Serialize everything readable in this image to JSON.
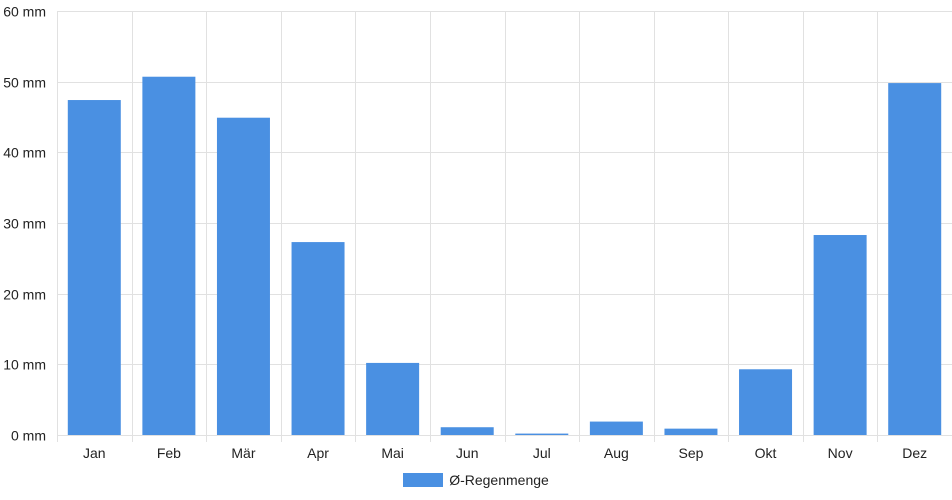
{
  "chart_data": {
    "type": "bar",
    "categories": [
      "Jan",
      "Feb",
      "Mär",
      "Apr",
      "Mai",
      "Jun",
      "Jul",
      "Aug",
      "Sep",
      "Okt",
      "Nov",
      "Dez"
    ],
    "series": [
      {
        "name": "Ø-Regenmenge",
        "values": [
          47.4,
          50.7,
          44.9,
          27.3,
          10.2,
          1.1,
          0.2,
          1.9,
          0.9,
          9.3,
          28.3,
          49.8
        ]
      }
    ],
    "ylim": [
      0,
      60
    ],
    "yticks": [
      "0 mm",
      "10 mm",
      "20 mm",
      "30 mm",
      "40 mm",
      "50 mm",
      "60 mm"
    ],
    "grid": true,
    "legend_position": "bottom",
    "colors": {
      "bar": "#4a90e2",
      "grid": "#e1e1e1"
    }
  }
}
